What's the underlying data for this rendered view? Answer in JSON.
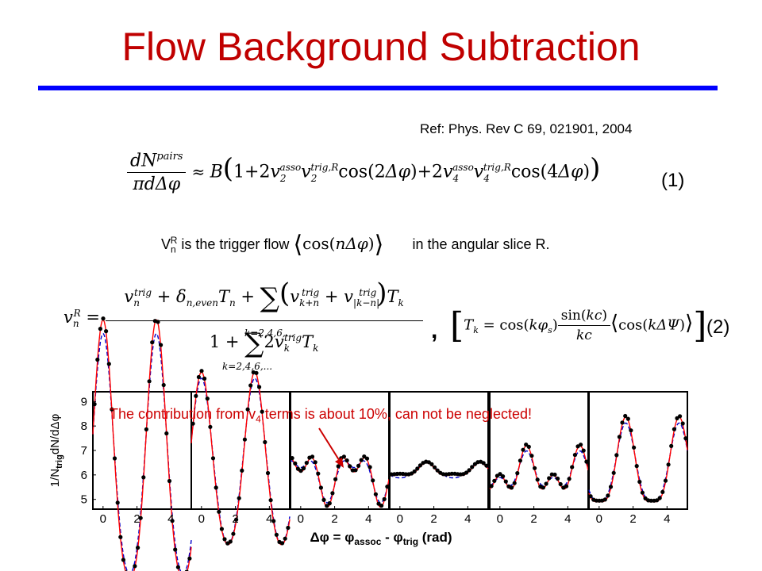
{
  "title": "Flow Background Subtraction",
  "reference": "Ref: Phys. Rev C 69, 021901, 2004",
  "equations": {
    "eq1_number": "(1)",
    "eq2_number": "(2)",
    "comma": ","
  },
  "sentence": {
    "before": "V",
    "sub": "n",
    "sup": "R",
    "middle": " is the trigger flow ",
    "after": " in the angular slice R."
  },
  "annotation": {
    "before": "The contribution from v",
    "sub": "4",
    "after": " terms is about 10%, can not be neglected!"
  },
  "colors": {
    "title": "#c00000",
    "rule": "#0000ff",
    "annotation": "#cc0000",
    "curve_red": "#ff0000",
    "curve_blue": "#0000cc",
    "data_points": "#000000"
  },
  "chart_data": {
    "type": "scatter",
    "panels": 6,
    "ylabel": "1/N",
    "ylabel_sub": "trig",
    "ylabel_rest": "dN/dΔφ",
    "xlabel_parts": [
      "Δφ = φ",
      "assoc",
      " - φ",
      "trig",
      " (rad)"
    ],
    "ylim": [
      4.6,
      9.4
    ],
    "xlim": [
      -0.6,
      5.2
    ],
    "y_ticks": [
      5,
      6,
      7,
      8,
      9
    ],
    "x_ticks": [
      0,
      2,
      4
    ],
    "panel_params": [
      {
        "base": 6.3,
        "v2": 0.42,
        "v4": 0.06,
        "v2_blue": 0.39,
        "v4_blue": 0.045
      },
      {
        "base": 6.3,
        "v2": 0.28,
        "v4": 0.03,
        "v2_blue": 0.27,
        "v4_blue": 0.02
      },
      {
        "base": 6.0,
        "v2": 0.06,
        "v4": -0.05,
        "v2_blue": 0.06,
        "v4_blue": -0.035
      },
      {
        "base": 6.15,
        "v2": -0.02,
        "v4": 0.008,
        "v2_blue": -0.025,
        "v4_blue": 0.003
      },
      {
        "base": 6.05,
        "v2": -0.05,
        "v4": 0.045,
        "v2_blue": -0.045,
        "v4_blue": 0.032
      },
      {
        "base": 6.2,
        "v2": -0.14,
        "v4": 0.035,
        "v2_blue": -0.13,
        "v4_blue": 0.025
      }
    ]
  }
}
